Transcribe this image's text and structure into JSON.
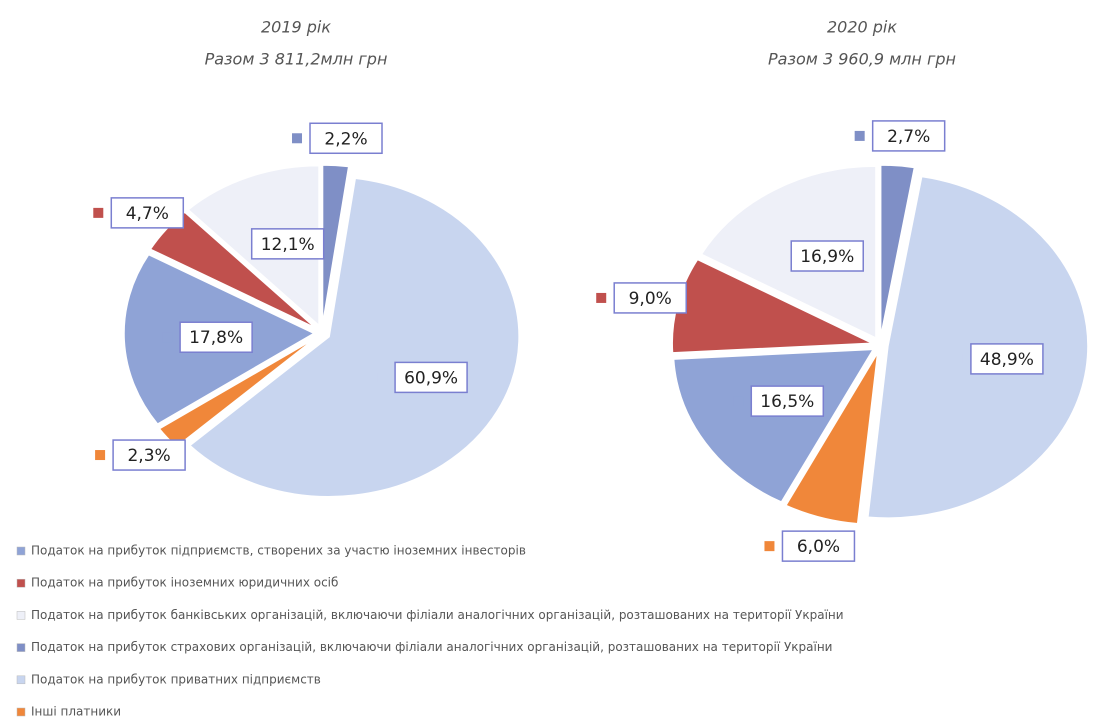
{
  "chart_data": [
    {
      "type": "pie",
      "title": "2019 рік",
      "subtitle": "Разом 3 811,2млн грн",
      "values": [
        17.8,
        4.7,
        12.1,
        2.2,
        60.9,
        2.3
      ],
      "value_labels": [
        "17,8%",
        "4,7%",
        "12,1%",
        "2,2%",
        "60,9%",
        "2,3%"
      ]
    },
    {
      "type": "pie",
      "title": "2020 рік",
      "subtitle": "Разом 3 960,9 млн грн",
      "values": [
        16.5,
        9.0,
        16.9,
        2.7,
        48.9,
        6.0
      ],
      "value_labels": [
        "16,5%",
        "9,0%",
        "16,9%",
        "2,7%",
        "48,9%",
        "6,0%"
      ]
    }
  ],
  "legend": {
    "labels": [
      "Податок на прибуток підприємств, створених за участю іноземних інвесторів",
      "Податок на прибуток іноземних юридичних осіб",
      "Податок на прибуток банківських організацій, включаючи філіали аналогічних організацій, розташованих на території України",
      "Податок на прибуток страхових організацій, включаючи філіали аналогічних організацій, розташованих на території України",
      "Податок на прибуток приватних підприємств",
      "Інші платники"
    ],
    "colors": [
      "#8fa3d6",
      "#c0504d",
      "#eef0f8",
      "#7f8fc6",
      "#c8d5ef",
      "#f0873a"
    ]
  }
}
